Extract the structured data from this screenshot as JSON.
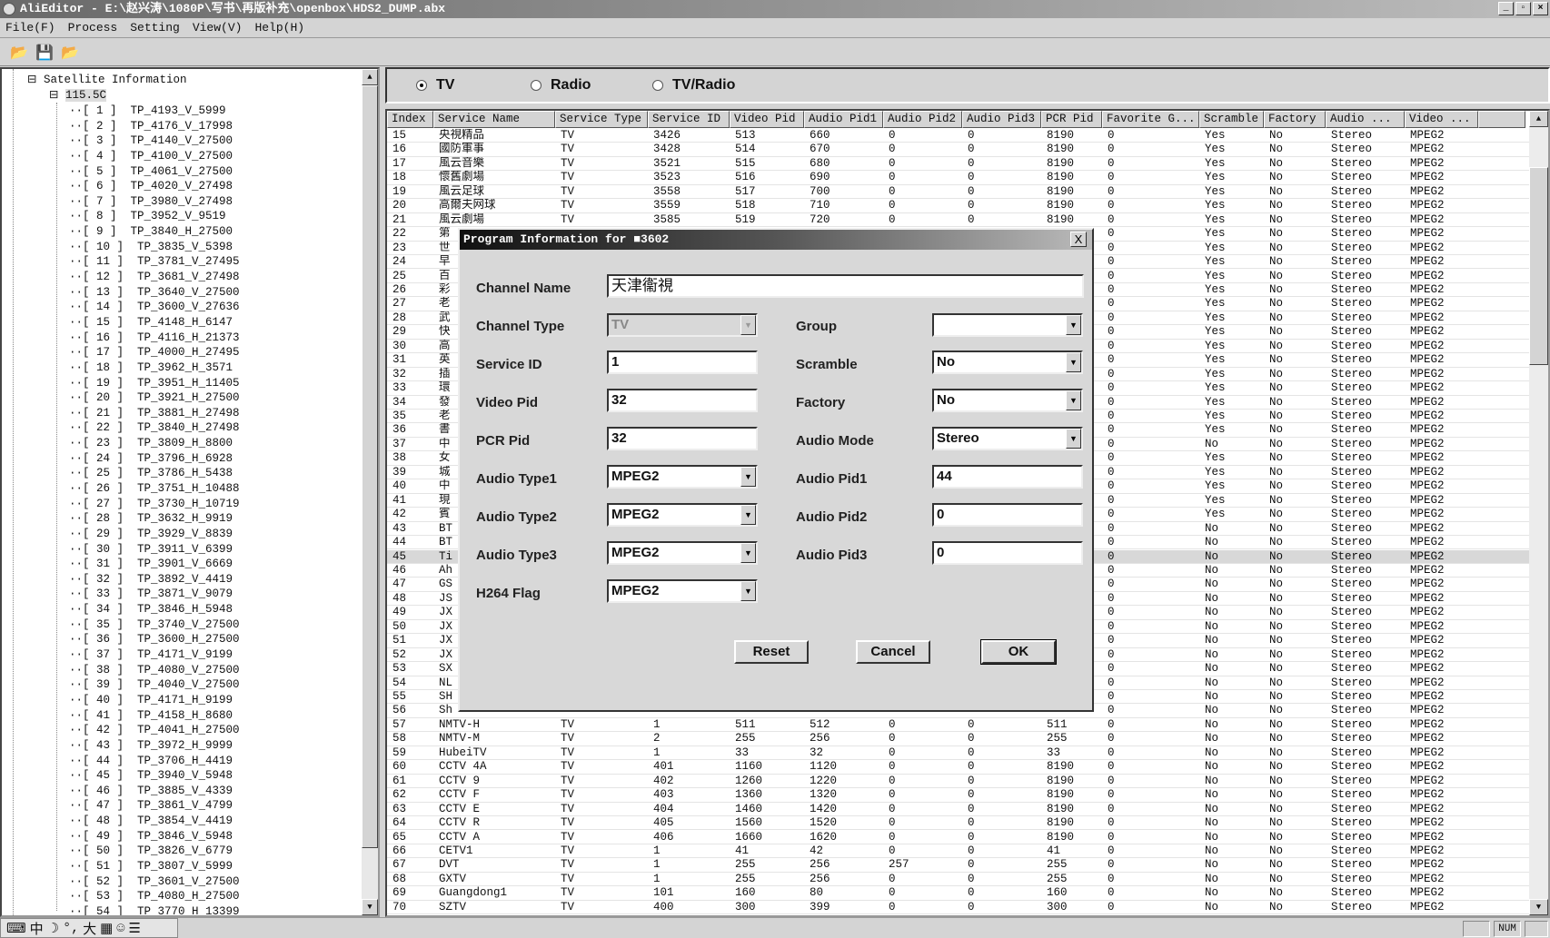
{
  "window": {
    "title": "AliEditor - E:\\赵兴涛\\1080P\\写书\\再版补充\\openbox\\HDS2_DUMP.abx",
    "min": "_",
    "max": "▫",
    "close": "×"
  },
  "menu": [
    "File(F)",
    "Process",
    "Setting",
    "View(V)",
    "Help(H)"
  ],
  "toolbar": {
    "icons": [
      "open-folder-icon",
      "save-disk-icon",
      "open-folder-icon"
    ]
  },
  "tree": {
    "root": "Satellite Information",
    "satellite": "115.5C",
    "items": [
      "TP_4193_V_5999",
      "TP_4176_V_17998",
      "TP_4140_V_27500",
      "TP_4100_V_27500",
      "TP_4061_V_27500",
      "TP_4020_V_27498",
      "TP_3980_V_27498",
      "TP_3952_V_9519",
      "TP_3840_H_27500",
      "TP_3835_V_5398",
      "TP_3781_V_27495",
      "TP_3681_V_27498",
      "TP_3640_V_27500",
      "TP_3600_V_27636",
      "TP_4148_H_6147",
      "TP_4116_H_21373",
      "TP_4000_H_27495",
      "TP_3962_H_3571",
      "TP_3951_H_11405",
      "TP_3921_H_27500",
      "TP_3881_H_27498",
      "TP_3840_H_27498",
      "TP_3809_H_8800",
      "TP_3796_H_6928",
      "TP_3786_H_5438",
      "TP_3751_H_10488",
      "TP_3730_H_10719",
      "TP_3632_H_9919",
      "TP_3929_V_8839",
      "TP_3911_V_6399",
      "TP_3901_V_6669",
      "TP_3892_V_4419",
      "TP_3871_V_9079",
      "TP_3846_H_5948",
      "TP_3740_V_27500",
      "TP_3600_H_27500",
      "TP_4171_V_9199",
      "TP_4080_V_27500",
      "TP_4040_V_27500",
      "TP_4171_H_9199",
      "TP_4158_H_8680",
      "TP_4041_H_27500",
      "TP_3972_H_9999",
      "TP_3706_H_4419",
      "TP_3940_V_5948",
      "TP_3885_V_4339",
      "TP_3861_V_4799",
      "TP_3854_V_4419",
      "TP_3846_V_5948",
      "TP_3826_V_6779",
      "TP_3807_V_5999",
      "TP_3601_V_27500",
      "TP_4080_H_27500",
      "TP_3770_H_13399"
    ]
  },
  "filter": {
    "options": [
      "TV",
      "Radio",
      "TV/Radio"
    ],
    "selected": "TV"
  },
  "table": {
    "columns": [
      "Index",
      "Service Name",
      "Service Type",
      "Service ID",
      "Video Pid",
      "Audio Pid1",
      "Audio Pid2",
      "Audio Pid3",
      "PCR Pid",
      "Favorite G...",
      "Scramble",
      "Factory",
      "Audio ...",
      "Video ..."
    ],
    "selected_index": "45",
    "rows": [
      [
        "15",
        "央視精品",
        "TV",
        "3426",
        "513",
        "660",
        "0",
        "0",
        "8190",
        "0",
        "Yes",
        "No",
        "Stereo",
        "MPEG2"
      ],
      [
        "16",
        "國防軍事",
        "TV",
        "3428",
        "514",
        "670",
        "0",
        "0",
        "8190",
        "0",
        "Yes",
        "No",
        "Stereo",
        "MPEG2"
      ],
      [
        "17",
        "風云音樂",
        "TV",
        "3521",
        "515",
        "680",
        "0",
        "0",
        "8190",
        "0",
        "Yes",
        "No",
        "Stereo",
        "MPEG2"
      ],
      [
        "18",
        "懷舊劇場",
        "TV",
        "3523",
        "516",
        "690",
        "0",
        "0",
        "8190",
        "0",
        "Yes",
        "No",
        "Stereo",
        "MPEG2"
      ],
      [
        "19",
        "風云足球",
        "TV",
        "3558",
        "517",
        "700",
        "0",
        "0",
        "8190",
        "0",
        "Yes",
        "No",
        "Stereo",
        "MPEG2"
      ],
      [
        "20",
        "高爾夫网球",
        "TV",
        "3559",
        "518",
        "710",
        "0",
        "0",
        "8190",
        "0",
        "Yes",
        "No",
        "Stereo",
        "MPEG2"
      ],
      [
        "21",
        "風云劇場",
        "TV",
        "3585",
        "519",
        "720",
        "0",
        "0",
        "8190",
        "0",
        "Yes",
        "No",
        "Stereo",
        "MPEG2"
      ],
      [
        "22",
        "第",
        "",
        "",
        "",
        "",
        "",
        "",
        "",
        "0",
        "Yes",
        "No",
        "Stereo",
        "MPEG2"
      ],
      [
        "23",
        "世",
        "",
        "",
        "",
        "",
        "",
        "",
        "",
        "0",
        "Yes",
        "No",
        "Stereo",
        "MPEG2"
      ],
      [
        "24",
        "早",
        "",
        "",
        "",
        "",
        "",
        "",
        "",
        "0",
        "Yes",
        "No",
        "Stereo",
        "MPEG2"
      ],
      [
        "25",
        "百",
        "",
        "",
        "",
        "",
        "",
        "",
        "",
        "0",
        "Yes",
        "No",
        "Stereo",
        "MPEG2"
      ],
      [
        "26",
        "彩",
        "",
        "",
        "",
        "",
        "",
        "",
        "",
        "0",
        "Yes",
        "No",
        "Stereo",
        "MPEG2"
      ],
      [
        "27",
        "老",
        "",
        "",
        "",
        "",
        "",
        "",
        "",
        "0",
        "Yes",
        "No",
        "Stereo",
        "MPEG2"
      ],
      [
        "28",
        "武",
        "",
        "",
        "",
        "",
        "",
        "",
        "",
        "0",
        "Yes",
        "No",
        "Stereo",
        "MPEG2"
      ],
      [
        "29",
        "快",
        "",
        "",
        "",
        "",
        "",
        "",
        "",
        "0",
        "Yes",
        "No",
        "Stereo",
        "MPEG2"
      ],
      [
        "30",
        "高",
        "",
        "",
        "",
        "",
        "",
        "",
        "",
        "0",
        "Yes",
        "No",
        "Stereo",
        "MPEG2"
      ],
      [
        "31",
        "英",
        "",
        "",
        "",
        "",
        "",
        "",
        "",
        "0",
        "Yes",
        "No",
        "Stereo",
        "MPEG2"
      ],
      [
        "32",
        "插",
        "",
        "",
        "",
        "",
        "",
        "",
        "",
        "0",
        "Yes",
        "No",
        "Stereo",
        "MPEG2"
      ],
      [
        "33",
        "環",
        "",
        "",
        "",
        "",
        "",
        "",
        "",
        "0",
        "Yes",
        "No",
        "Stereo",
        "MPEG2"
      ],
      [
        "34",
        "發",
        "",
        "",
        "",
        "",
        "",
        "",
        "",
        "0",
        "Yes",
        "No",
        "Stereo",
        "MPEG2"
      ],
      [
        "35",
        "老",
        "",
        "",
        "",
        "",
        "",
        "",
        "",
        "0",
        "Yes",
        "No",
        "Stereo",
        "MPEG2"
      ],
      [
        "36",
        "書",
        "",
        "",
        "",
        "",
        "",
        "",
        "",
        "0",
        "Yes",
        "No",
        "Stereo",
        "MPEG2"
      ],
      [
        "37",
        "中",
        "",
        "",
        "",
        "",
        "",
        "",
        "",
        "0",
        "No",
        "No",
        "Stereo",
        "MPEG2"
      ],
      [
        "38",
        "女",
        "",
        "",
        "",
        "",
        "",
        "",
        "",
        "0",
        "Yes",
        "No",
        "Stereo",
        "MPEG2"
      ],
      [
        "39",
        "城",
        "",
        "",
        "",
        "",
        "",
        "",
        "",
        "0",
        "Yes",
        "No",
        "Stereo",
        "MPEG2"
      ],
      [
        "40",
        "中",
        "",
        "",
        "",
        "",
        "",
        "",
        "",
        "0",
        "Yes",
        "No",
        "Stereo",
        "MPEG2"
      ],
      [
        "41",
        "現",
        "",
        "",
        "",
        "",
        "",
        "",
        "",
        "0",
        "Yes",
        "No",
        "Stereo",
        "MPEG2"
      ],
      [
        "42",
        "賓",
        "",
        "",
        "",
        "",
        "",
        "",
        "",
        "0",
        "Yes",
        "No",
        "Stereo",
        "MPEG2"
      ],
      [
        "43",
        "BT",
        "",
        "",
        "",
        "",
        "",
        "",
        "",
        "0",
        "No",
        "No",
        "Stereo",
        "MPEG2"
      ],
      [
        "44",
        "BT",
        "",
        "",
        "",
        "",
        "",
        "",
        "",
        "0",
        "No",
        "No",
        "Stereo",
        "MPEG2"
      ],
      [
        "45",
        "Ti",
        "",
        "",
        "",
        "",
        "",
        "",
        "",
        "0",
        "No",
        "No",
        "Stereo",
        "MPEG2"
      ],
      [
        "46",
        "Ah",
        "",
        "",
        "",
        "",
        "",
        "",
        "",
        "0",
        "No",
        "No",
        "Stereo",
        "MPEG2"
      ],
      [
        "47",
        "GS",
        "",
        "",
        "",
        "",
        "",
        "",
        "",
        "0",
        "No",
        "No",
        "Stereo",
        "MPEG2"
      ],
      [
        "48",
        "JS",
        "",
        "",
        "",
        "",
        "",
        "",
        "",
        "0",
        "No",
        "No",
        "Stereo",
        "MPEG2"
      ],
      [
        "49",
        "JX",
        "",
        "",
        "",
        "",
        "",
        "",
        "",
        "0",
        "No",
        "No",
        "Stereo",
        "MPEG2"
      ],
      [
        "50",
        "JX",
        "",
        "",
        "",
        "",
        "",
        "",
        "",
        "0",
        "No",
        "No",
        "Stereo",
        "MPEG2"
      ],
      [
        "51",
        "JX",
        "",
        "",
        "",
        "",
        "",
        "",
        "",
        "0",
        "No",
        "No",
        "Stereo",
        "MPEG2"
      ],
      [
        "52",
        "JX",
        "",
        "",
        "",
        "",
        "",
        "",
        "",
        "0",
        "No",
        "No",
        "Stereo",
        "MPEG2"
      ],
      [
        "53",
        "SX",
        "",
        "",
        "",
        "",
        "",
        "",
        "",
        "0",
        "No",
        "No",
        "Stereo",
        "MPEG2"
      ],
      [
        "54",
        "NL",
        "",
        "",
        "",
        "",
        "",
        "",
        "",
        "0",
        "No",
        "No",
        "Stereo",
        "MPEG2"
      ],
      [
        "55",
        "SH",
        "",
        "",
        "",
        "",
        "",
        "",
        "",
        "0",
        "No",
        "No",
        "Stereo",
        "MPEG2"
      ],
      [
        "56",
        "Sh",
        "",
        "",
        "",
        "",
        "",
        "",
        "",
        "0",
        "No",
        "No",
        "Stereo",
        "MPEG2"
      ],
      [
        "57",
        "NMTV-H",
        "TV",
        "1",
        "511",
        "512",
        "0",
        "0",
        "511",
        "0",
        "No",
        "No",
        "Stereo",
        "MPEG2"
      ],
      [
        "58",
        "NMTV-M",
        "TV",
        "2",
        "255",
        "256",
        "0",
        "0",
        "255",
        "0",
        "No",
        "No",
        "Stereo",
        "MPEG2"
      ],
      [
        "59",
        "HubeiTV",
        "TV",
        "1",
        "33",
        "32",
        "0",
        "0",
        "33",
        "0",
        "No",
        "No",
        "Stereo",
        "MPEG2"
      ],
      [
        "60",
        "CCTV 4A",
        "TV",
        "401",
        "1160",
        "1120",
        "0",
        "0",
        "8190",
        "0",
        "No",
        "No",
        "Stereo",
        "MPEG2"
      ],
      [
        "61",
        "CCTV 9",
        "TV",
        "402",
        "1260",
        "1220",
        "0",
        "0",
        "8190",
        "0",
        "No",
        "No",
        "Stereo",
        "MPEG2"
      ],
      [
        "62",
        "CCTV F",
        "TV",
        "403",
        "1360",
        "1320",
        "0",
        "0",
        "8190",
        "0",
        "No",
        "No",
        "Stereo",
        "MPEG2"
      ],
      [
        "63",
        "CCTV E",
        "TV",
        "404",
        "1460",
        "1420",
        "0",
        "0",
        "8190",
        "0",
        "No",
        "No",
        "Stereo",
        "MPEG2"
      ],
      [
        "64",
        "CCTV R",
        "TV",
        "405",
        "1560",
        "1520",
        "0",
        "0",
        "8190",
        "0",
        "No",
        "No",
        "Stereo",
        "MPEG2"
      ],
      [
        "65",
        "CCTV A",
        "TV",
        "406",
        "1660",
        "1620",
        "0",
        "0",
        "8190",
        "0",
        "No",
        "No",
        "Stereo",
        "MPEG2"
      ],
      [
        "66",
        "CETV1",
        "TV",
        "1",
        "41",
        "42",
        "0",
        "0",
        "41",
        "0",
        "No",
        "No",
        "Stereo",
        "MPEG2"
      ],
      [
        "67",
        "DVT",
        "TV",
        "1",
        "255",
        "256",
        "257",
        "0",
        "255",
        "0",
        "No",
        "No",
        "Stereo",
        "MPEG2"
      ],
      [
        "68",
        "GXTV",
        "TV",
        "1",
        "255",
        "256",
        "0",
        "0",
        "255",
        "0",
        "No",
        "No",
        "Stereo",
        "MPEG2"
      ],
      [
        "69",
        "Guangdong1",
        "TV",
        "101",
        "160",
        "80",
        "0",
        "0",
        "160",
        "0",
        "No",
        "No",
        "Stereo",
        "MPEG2"
      ],
      [
        "70",
        "SZTV",
        "TV",
        "400",
        "300",
        "399",
        "0",
        "0",
        "300",
        "0",
        "No",
        "No",
        "Stereo",
        "MPEG2"
      ]
    ]
  },
  "dialog": {
    "title": "Program Information for ■3602",
    "close": "X",
    "channel_name_label": "Channel Name",
    "channel_name": "天津衞視",
    "channel_type_label": "Channel Type",
    "channel_type": "TV",
    "service_id_label": "Service ID",
    "service_id": "1",
    "video_pid_label": "Video Pid",
    "video_pid": "32",
    "pcr_pid_label": "PCR Pid",
    "pcr_pid": "32",
    "audio_type1_label": "Audio Type1",
    "audio_type1": "MPEG2",
    "audio_type2_label": "Audio Type2",
    "audio_type2": "MPEG2",
    "audio_type3_label": "Audio Type3",
    "audio_type3": "MPEG2",
    "h264_flag_label": "H264 Flag",
    "h264_flag": "MPEG2",
    "group_label": "Group",
    "group": "",
    "scramble_label": "Scramble",
    "scramble": "No",
    "factory_label": "Factory",
    "factory": "No",
    "audio_mode_label": "Audio Mode",
    "audio_mode": "Stereo",
    "audio_pid1_label": "Audio Pid1",
    "audio_pid1": "44",
    "audio_pid2_label": "Audio Pid2",
    "audio_pid2": "0",
    "audio_pid3_label": "Audio Pid3",
    "audio_pid3": "0",
    "reset": "Reset",
    "cancel": "Cancel",
    "ok": "OK"
  },
  "status": {
    "ime": "中",
    "num": "NUM"
  }
}
